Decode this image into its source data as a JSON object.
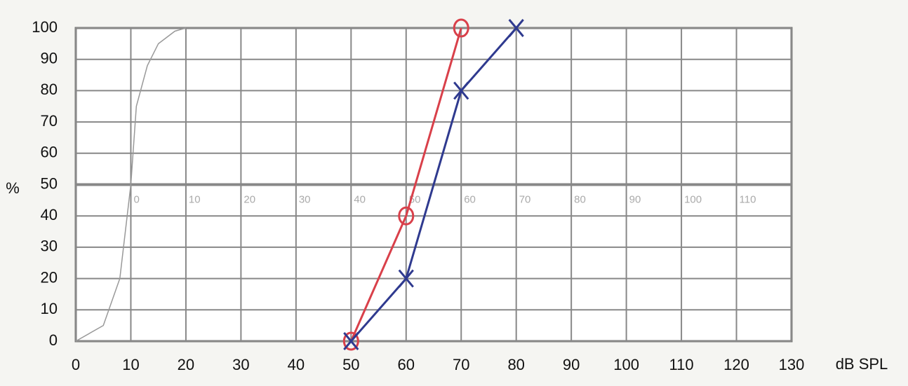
{
  "chart_data": {
    "type": "line",
    "x_label": "dB SPL",
    "y_label": "%",
    "xlim": [
      0,
      130
    ],
    "xticks": [
      0,
      10,
      20,
      30,
      40,
      50,
      60,
      70,
      80,
      90,
      100,
      110,
      120,
      130
    ],
    "ylim": [
      0,
      100
    ],
    "yticks": [
      0,
      10,
      20,
      30,
      40,
      50,
      60,
      70,
      80,
      90,
      100
    ],
    "x2lim": [
      -10,
      120
    ],
    "x2ticks": [
      0,
      10,
      20,
      30,
      40,
      50,
      60,
      70,
      80,
      90,
      100,
      110
    ],
    "grid": true,
    "series": [
      {
        "color": "#999999",
        "marker": "none",
        "x": [
          0,
          5,
          8,
          10,
          11,
          13,
          15,
          18,
          20
        ],
        "values": [
          0,
          5,
          20,
          50,
          75,
          88,
          95,
          99,
          100
        ]
      },
      {
        "color": "#d9404a",
        "marker": "o",
        "x": [
          50,
          60,
          70
        ],
        "values": [
          0,
          40,
          100
        ]
      },
      {
        "color": "#2f3a8f",
        "marker": "x",
        "x": [
          50,
          60,
          70,
          80
        ],
        "values": [
          0,
          20,
          80,
          100
        ]
      }
    ]
  }
}
